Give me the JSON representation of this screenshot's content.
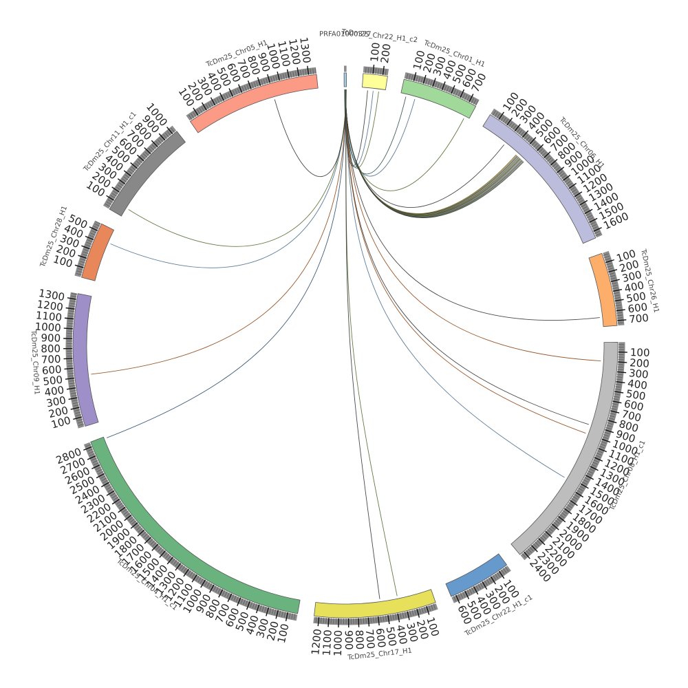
{
  "diagram": {
    "type": "circos",
    "chromosomes": [
      {
        "id": "PRFA01000377",
        "label": "PRFA01000377",
        "color": "#a6cee3",
        "length": 25,
        "tick_step": 100,
        "tick_values": []
      },
      {
        "id": "chr22c2",
        "label": "TcDm25_Chr22_H1_c2",
        "color": "#ffff99",
        "length": 250,
        "tick_step": 100,
        "tick_values": [
          100,
          200
        ]
      },
      {
        "id": "chr01",
        "label": "TcDm25_Chr01_H1",
        "color": "#a1d99b",
        "length": 780,
        "tick_step": 100,
        "tick_values": [
          100,
          200,
          300,
          400,
          500,
          600,
          700
        ]
      },
      {
        "id": "chr06",
        "label": "TcDm25_Chr06_H1",
        "color": "#bcbddc",
        "length": 1670,
        "tick_step": 100,
        "tick_values": [
          100,
          200,
          300,
          400,
          500,
          600,
          700,
          800,
          900,
          1000,
          1100,
          1200,
          1300,
          1400,
          1500,
          1600
        ]
      },
      {
        "id": "chr26",
        "label": "TcDm25_Chr26_H1",
        "color": "#fdae6b",
        "length": 750,
        "tick_step": 100,
        "tick_values": [
          100,
          200,
          300,
          400,
          500,
          600,
          700
        ]
      },
      {
        "id": "chr08c1",
        "label": "TcDm25_Chr08_H1_c1",
        "color": "#bdbdbd",
        "length": 2450,
        "tick_step": 100,
        "tick_values": [
          100,
          200,
          300,
          400,
          500,
          600,
          700,
          800,
          900,
          1000,
          1100,
          1200,
          1300,
          1400,
          1500,
          1600,
          1700,
          1800,
          1900,
          2000,
          2100,
          2200,
          2300,
          2400
        ]
      },
      {
        "id": "chr22c1",
        "label": "TcDm25_Chr22_H1_c1",
        "color": "#6699cc",
        "length": 650,
        "tick_step": 100,
        "tick_values": [
          100,
          200,
          300,
          400,
          500,
          600
        ]
      },
      {
        "id": "chr17",
        "label": "TcDm25_Chr17_H1",
        "color": "#e6e05a",
        "length": 1250,
        "tick_step": 100,
        "tick_values": [
          100,
          200,
          300,
          400,
          500,
          600,
          700,
          800,
          900,
          1000,
          1100,
          1200
        ]
      },
      {
        "id": "chr04c1",
        "label": "TcDm25_Chr04_H1_c1",
        "color": "#6bb37e",
        "length": 2850,
        "tick_step": 100,
        "tick_values": [
          100,
          200,
          300,
          400,
          500,
          600,
          700,
          800,
          900,
          1000,
          1100,
          1200,
          1300,
          1400,
          1500,
          1600,
          1700,
          1800,
          1900,
          2000,
          2100,
          2200,
          2300,
          2400,
          2500,
          2600,
          2700,
          2800
        ]
      },
      {
        "id": "chr09",
        "label": "TcDm25_Chr09_H1",
        "color": "#9e8fc8",
        "length": 1360,
        "tick_step": 100,
        "tick_values": [
          100,
          200,
          300,
          400,
          500,
          600,
          700,
          800,
          900,
          1000,
          1100,
          1200,
          1300
        ]
      },
      {
        "id": "chr28",
        "label": "TcDm25_Chr28_H1",
        "color": "#e8885a",
        "length": 580,
        "tick_step": 100,
        "tick_values": [
          100,
          200,
          300,
          400,
          500
        ]
      },
      {
        "id": "chr11c1",
        "label": "TcDm25_Chr11_H1_c1",
        "color": "#888888",
        "length": 1050,
        "tick_step": 100,
        "tick_values": [
          100,
          200,
          300,
          400,
          500,
          600,
          700,
          800,
          900,
          1000
        ]
      },
      {
        "id": "chr05",
        "label": "TcDm25_Chr05_H1",
        "color": "#fb9a85",
        "length": 1380,
        "tick_step": 100,
        "tick_values": [
          100,
          200,
          300,
          400,
          500,
          600,
          700,
          800,
          900,
          1000,
          1100,
          1200,
          1300
        ]
      }
    ],
    "links": [
      {
        "from": "PRFA01000377",
        "from_pos": 5,
        "to": "chr22c2",
        "to_pos": 60,
        "color": "#333333"
      },
      {
        "from": "PRFA01000377",
        "from_pos": 7,
        "to": "chr22c2",
        "to_pos": 120,
        "color": "#4a6d8c"
      },
      {
        "from": "PRFA01000377",
        "from_pos": 9,
        "to": "chr22c2",
        "to_pos": 180,
        "color": "#556b2f"
      },
      {
        "from": "PRFA01000377",
        "from_pos": 10,
        "to": "chr01",
        "to_pos": 60,
        "color": "#2f4f4f"
      },
      {
        "from": "PRFA01000377",
        "from_pos": 11,
        "to": "chr01",
        "to_pos": 160,
        "color": "#4a6d8c"
      },
      {
        "from": "PRFA01000377",
        "from_pos": 12,
        "to": "chr01",
        "to_pos": 730,
        "color": "#556b2f"
      },
      {
        "from": "PRFA01000377",
        "from_pos": 13,
        "to": "chr06",
        "to_pos": 300,
        "color": "#333333"
      },
      {
        "from": "PRFA01000377",
        "from_pos": 13,
        "to": "chr06",
        "to_pos": 470,
        "color": "#7a5c1e"
      },
      {
        "from": "PRFA01000377",
        "from_pos": 13,
        "to": "chr06",
        "to_pos": 480,
        "color": "#556b2f"
      },
      {
        "from": "PRFA01000377",
        "from_pos": 14,
        "to": "chr06",
        "to_pos": 490,
        "color": "#333333"
      },
      {
        "from": "PRFA01000377",
        "from_pos": 14,
        "to": "chr06",
        "to_pos": 500,
        "color": "#8b6f3a"
      },
      {
        "from": "PRFA01000377",
        "from_pos": 14,
        "to": "chr06",
        "to_pos": 510,
        "color": "#2f4f4f"
      },
      {
        "from": "PRFA01000377",
        "from_pos": 15,
        "to": "chr06",
        "to_pos": 520,
        "color": "#556b2f"
      },
      {
        "from": "PRFA01000377",
        "from_pos": 15,
        "to": "chr06",
        "to_pos": 530,
        "color": "#333333"
      },
      {
        "from": "PRFA01000377",
        "from_pos": 15,
        "to": "chr06",
        "to_pos": 540,
        "color": "#7a5c1e"
      },
      {
        "from": "PRFA01000377",
        "from_pos": 16,
        "to": "chr06",
        "to_pos": 550,
        "color": "#4a6d8c"
      },
      {
        "from": "PRFA01000377",
        "from_pos": 16,
        "to": "chr06",
        "to_pos": 560,
        "color": "#333333"
      },
      {
        "from": "PRFA01000377",
        "from_pos": 16,
        "to": "chr06",
        "to_pos": 570,
        "color": "#556b2f"
      },
      {
        "from": "PRFA01000377",
        "from_pos": 16,
        "to": "chr06",
        "to_pos": 580,
        "color": "#333333"
      },
      {
        "from": "PRFA01000377",
        "from_pos": 17,
        "to": "chr26",
        "to_pos": 650,
        "color": "#333333"
      },
      {
        "from": "PRFA01000377",
        "from_pos": 17,
        "to": "chr08c1",
        "to_pos": 200,
        "color": "#8b4513"
      },
      {
        "from": "PRFA01000377",
        "from_pos": 18,
        "to": "chr08c1",
        "to_pos": 900,
        "color": "#333333"
      },
      {
        "from": "PRFA01000377",
        "from_pos": 18,
        "to": "chr08c1",
        "to_pos": 1000,
        "color": "#8b4513"
      },
      {
        "from": "PRFA01000377",
        "from_pos": 19,
        "to": "chr08c1",
        "to_pos": 1530,
        "color": "#4a6d8c"
      },
      {
        "from": "PRFA01000377",
        "from_pos": 19,
        "to": "chr17",
        "to_pos": 370,
        "color": "#556b2f"
      },
      {
        "from": "PRFA01000377",
        "from_pos": 20,
        "to": "chr17",
        "to_pos": 560,
        "color": "#333333"
      },
      {
        "from": "PRFA01000377",
        "from_pos": 20,
        "to": "chr04c1",
        "to_pos": 2830,
        "color": "#2c4a6b"
      },
      {
        "from": "PRFA01000377",
        "from_pos": 21,
        "to": "chr09",
        "to_pos": 520,
        "color": "#8b4513"
      },
      {
        "from": "PRFA01000377",
        "from_pos": 21,
        "to": "chr28",
        "to_pos": 430,
        "color": "#4a6d8c"
      },
      {
        "from": "PRFA01000377",
        "from_pos": 22,
        "to": "chr11c1",
        "to_pos": 100,
        "color": "#556b2f"
      },
      {
        "from": "PRFA01000377",
        "from_pos": 23,
        "to": "chr05",
        "to_pos": 900,
        "color": "#333333"
      }
    ]
  }
}
